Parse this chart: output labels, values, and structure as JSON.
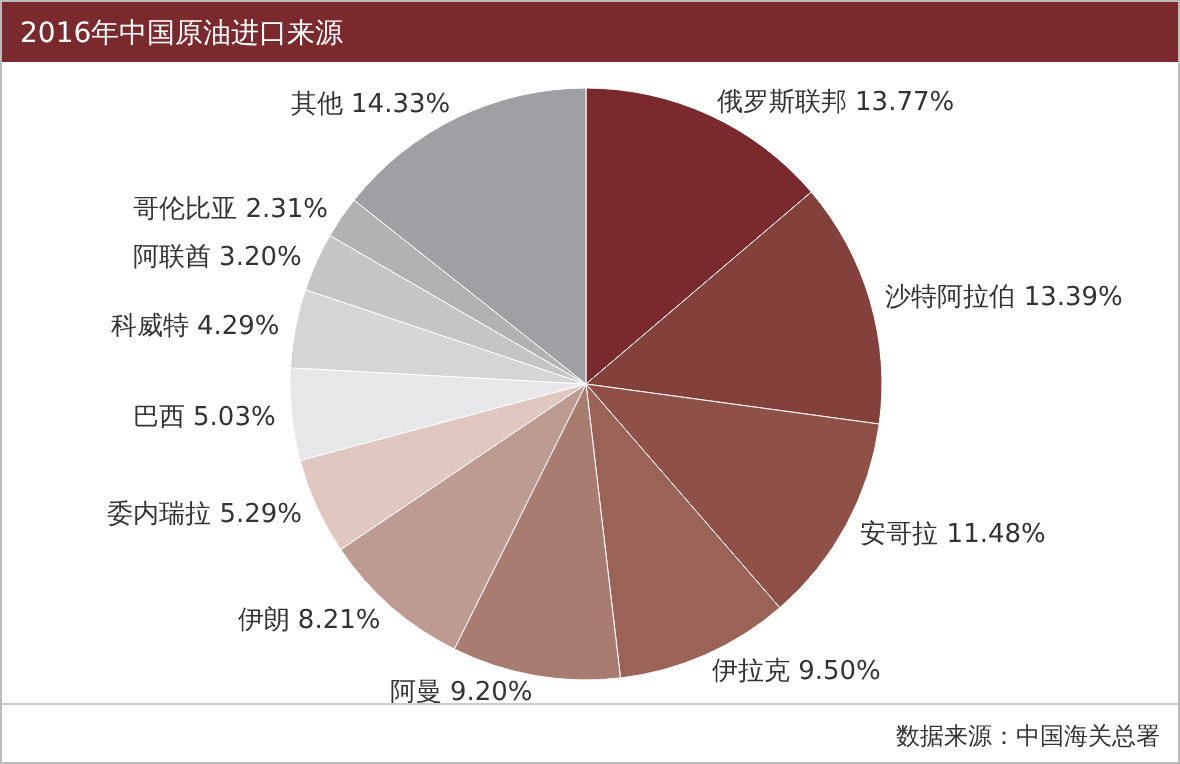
{
  "chart_data": {
    "type": "pie",
    "title": "2016年中国原油进口来源",
    "categories": [
      "俄罗斯联邦",
      "沙特阿拉伯",
      "安哥拉",
      "伊拉克",
      "阿曼",
      "伊朗",
      "委内瑞拉",
      "巴西",
      "科威特",
      "阿联酋",
      "哥伦比亚",
      "其他"
    ],
    "values": [
      13.77,
      13.39,
      11.48,
      9.5,
      9.2,
      8.21,
      5.29,
      5.03,
      4.29,
      3.2,
      2.31,
      14.33
    ],
    "value_labels": [
      "13.77%",
      "13.39%",
      "11.48%",
      "9.50%",
      "9.20%",
      "8.21%",
      "5.29%",
      "5.03%",
      "4.29%",
      "3.20%",
      "2.31%",
      "14.33%"
    ],
    "colors": [
      "#7a2a2d",
      "#84403b",
      "#8e5047",
      "#9b6357",
      "#a97c72",
      "#bd9b93",
      "#e0c8c1",
      "#e7e7e9",
      "#d5d5d7",
      "#c5c5c8",
      "#b2b2b5",
      "#9fa0a3"
    ],
    "annotations": [
      "数据来源：中国海关总署"
    ]
  }
}
